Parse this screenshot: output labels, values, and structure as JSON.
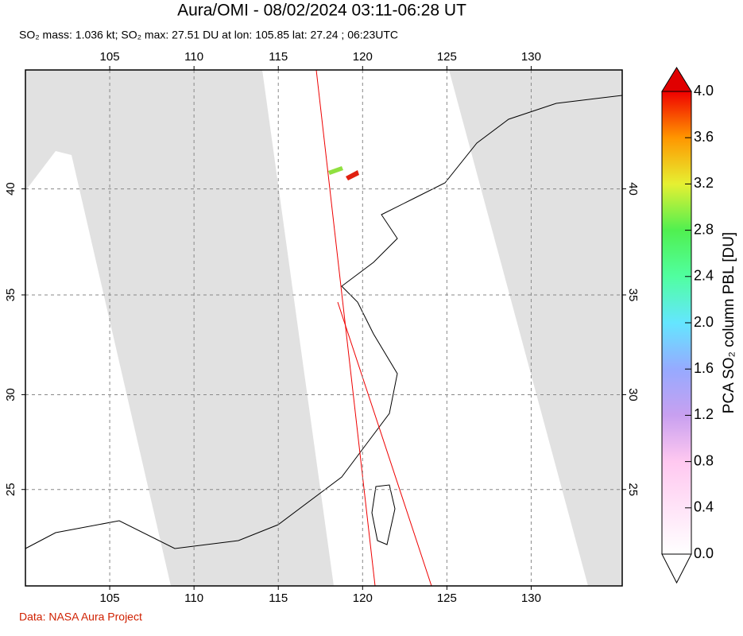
{
  "header": {
    "title": "Aura/OMI - 08/02/2024 03:11-06:28 UT",
    "subtitle": "SO₂ mass: 1.036 kt; SO₂ max: 27.51 DU at lon: 105.85 lat: 27.24 ; 06:23UTC"
  },
  "map": {
    "xlim": [
      100,
      135.4
    ],
    "ylim": [
      19.7,
      45.2
    ],
    "xticks": [
      105,
      110,
      115,
      120,
      125,
      130
    ],
    "yticks": [
      25,
      30,
      35,
      40
    ]
  },
  "colorbar": {
    "label": "PCA SO₂ column PBL [DU]",
    "clim": [
      0,
      4
    ],
    "ticks": [
      {
        "value": 0,
        "label": "0.0"
      },
      {
        "value": 0.4,
        "label": "0.4"
      },
      {
        "value": 0.8,
        "label": "0.8"
      },
      {
        "value": 1.2,
        "label": "1.2"
      },
      {
        "value": 1.6,
        "label": "1.6"
      },
      {
        "value": 2,
        "label": "2.0"
      },
      {
        "value": 2.4,
        "label": "2.4"
      },
      {
        "value": 2.8,
        "label": "2.8"
      },
      {
        "value": 3.2,
        "label": "3.2"
      },
      {
        "value": 3.6,
        "label": "3.6"
      },
      {
        "value": 4,
        "label": "4.0"
      }
    ]
  },
  "footer": {
    "credit": "Data: NASA Aura Project"
  }
}
